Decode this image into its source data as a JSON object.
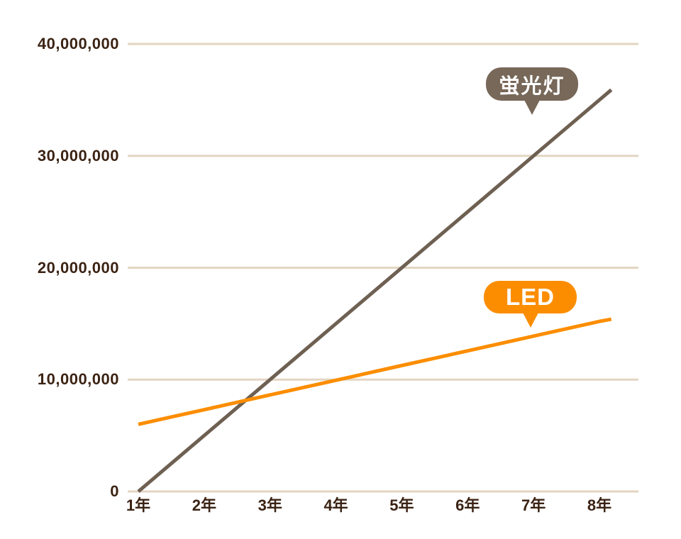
{
  "chart_data": {
    "type": "line",
    "title": "",
    "xlabel": "",
    "ylabel": "",
    "x_categories": [
      "1年",
      "2年",
      "3年",
      "4年",
      "5年",
      "6年",
      "7年",
      "8年"
    ],
    "ylim": [
      0,
      40000000
    ],
    "grid": "horizontal",
    "legend": "callout-bubbles",
    "y_ticks": [
      {
        "label": "40,000,000",
        "value": 40000000
      },
      {
        "label": "30,000,000",
        "value": 30000000
      },
      {
        "label": "20,000,000",
        "value": 20000000
      },
      {
        "label": "10,000,000",
        "value": 10000000
      },
      {
        "label": "0",
        "value": 0
      }
    ],
    "series": [
      {
        "name": "蛍光灯",
        "color": "#6E6052",
        "values": [
          0,
          5000000,
          10000000,
          15000000,
          20000000,
          25000000,
          30000000,
          35000000
        ],
        "line_end": {
          "year": 8.18,
          "value": 35900000
        }
      },
      {
        "name": "LED",
        "color": "#FC8D00",
        "values": [
          6000000,
          7310000,
          8630000,
          9940000,
          11260000,
          12570000,
          13890000,
          15200000
        ],
        "line_end": {
          "year": 8.18,
          "value": 15400000
        }
      }
    ]
  },
  "callouts": {
    "fluorescent": {
      "label": "蛍光灯",
      "bg": "#776859",
      "text_color": "#FFFFFF"
    },
    "led": {
      "label": "LED",
      "bg": "#FC8D00",
      "text_color": "#FFFFFF"
    }
  },
  "colors": {
    "axis_text": "#3B2314",
    "gridline": "#E3D5C2",
    "background": "#FFFFFF"
  }
}
